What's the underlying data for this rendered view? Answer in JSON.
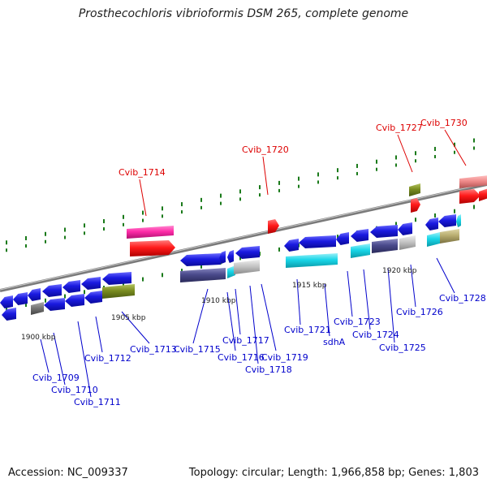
{
  "title": "Prosthecochloris vibrioformis DSM 265, complete genome",
  "footer": {
    "accession": "Accession: NC_009337",
    "topology": "Topology: circular; Length: 1,966,858 bp; Genes: 1,803"
  },
  "colors": {
    "backbone": "#8a8a8a",
    "gene_blue": "#1a1ae0",
    "gene_label_blue": "#0000cc",
    "gene_label_red": "#dd0000",
    "red": "#ff1a1a",
    "magenta": "#ff2ca8",
    "olive": "#7a8c20",
    "navy": "#4a4a8c",
    "cyan": "#19d6e8",
    "gray": "#bdbdbd",
    "pink": "#ef8a8a",
    "tick": "#1a7a1a"
  },
  "scale_labels": [
    "1900 kbp",
    "1905 kbp",
    "1910 kbp",
    "1915 kbp",
    "1920 kbp"
  ],
  "genes": [
    {
      "label": "Cvib_1709",
      "color": "red_label_false"
    },
    {
      "label": "Cvib_1710"
    },
    {
      "label": "Cvib_1711"
    },
    {
      "label": "Cvib_1712"
    },
    {
      "label": "Cvib_1713"
    },
    {
      "label": "Cvib_1714"
    },
    {
      "label": "Cvib_1715"
    },
    {
      "label": "Cvib_1716"
    },
    {
      "label": "Cvib_1717"
    },
    {
      "label": "Cvib_1718"
    },
    {
      "label": "Cvib_1719"
    },
    {
      "label": "Cvib_1720"
    },
    {
      "label": "Cvib_1721"
    },
    {
      "label": "sdhA"
    },
    {
      "label": "Cvib_1723"
    },
    {
      "label": "Cvib_1724"
    },
    {
      "label": "Cvib_1725"
    },
    {
      "label": "Cvib_1726"
    },
    {
      "label": "Cvib_1727"
    },
    {
      "label": "Cvib_1728"
    },
    {
      "label": "Cvib_1730"
    }
  ]
}
